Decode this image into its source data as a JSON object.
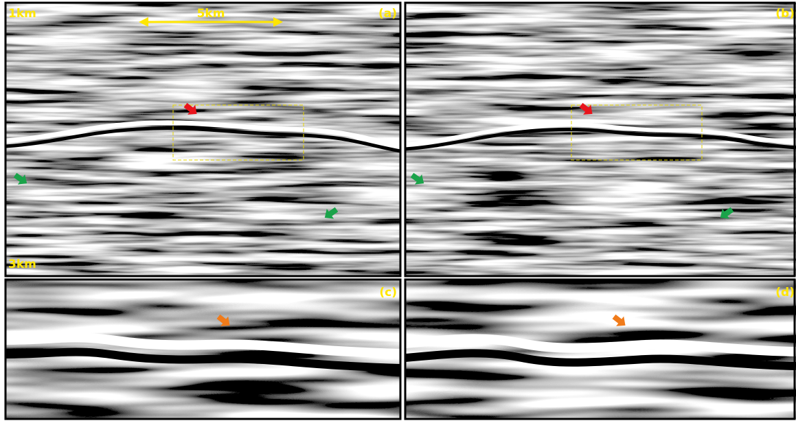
{
  "panels": [
    {
      "label": "(a)"
    },
    {
      "label": "(b)"
    },
    {
      "label": "(c)"
    },
    {
      "label": "(d)"
    }
  ],
  "scale": {
    "top": "1km",
    "width": "5km",
    "bottom": "3km"
  }
}
